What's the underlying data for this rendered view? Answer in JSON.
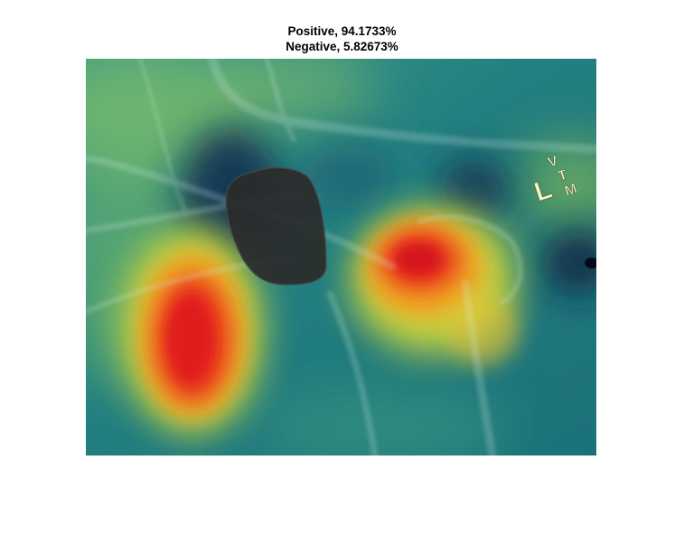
{
  "figure": {
    "title_lines": [
      "Positive, 94.1733%",
      "Negative, 5.82673%"
    ]
  },
  "image": {
    "colors": {
      "background_teal": "#1f7d7e",
      "dark_blue": "#0b2a4e",
      "hot_red": "#e31b1b",
      "warm_yellow": "#e4de3a",
      "lime_green": "#8fca5a",
      "mask_gray": "#2a2a2a"
    },
    "marker": {
      "letters": [
        "L",
        "V",
        "T",
        "M"
      ]
    }
  }
}
